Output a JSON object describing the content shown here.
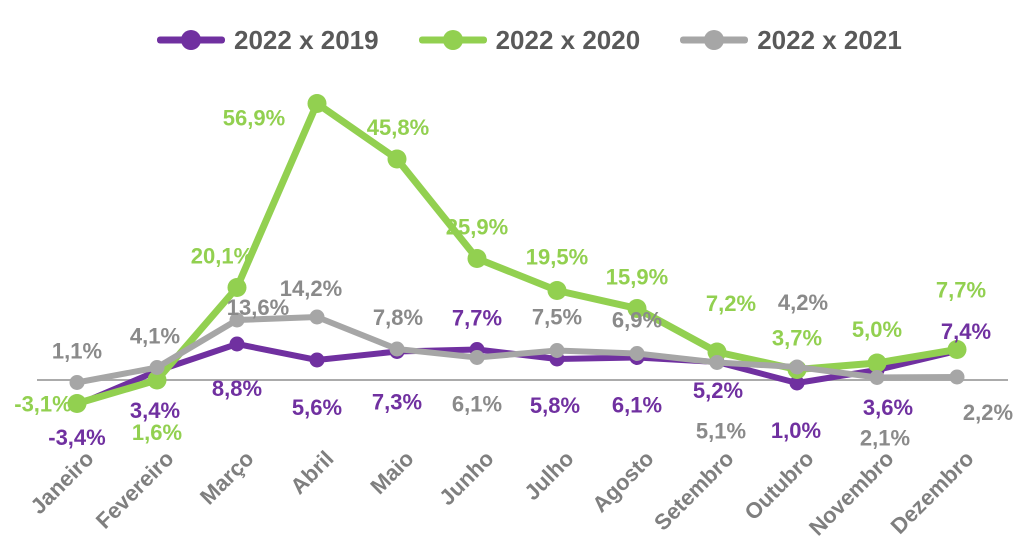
{
  "chart_data": {
    "type": "line",
    "categories": [
      "Janeiro",
      "Fevereiro",
      "Março",
      "Abril",
      "Maio",
      "Junho",
      "Julho",
      "Agosto",
      "Setembro",
      "Outubro",
      "Novembro",
      "Dezembro"
    ],
    "series": [
      {
        "name": "2022 x 2019",
        "color": "#7030A0",
        "label_color": "#7030A0",
        "values": [
          -3.4,
          3.4,
          8.8,
          5.6,
          7.3,
          7.7,
          5.8,
          6.1,
          5.2,
          1.0,
          3.6,
          7.4
        ],
        "labels": [
          "-3,4%",
          "3,4%",
          "8,8%",
          "5,6%",
          "7,3%",
          "7,7%",
          "5,8%",
          "6,1%",
          "5,2%",
          "1,0%",
          "3,6%",
          "7,4%"
        ],
        "label_offsets": [
          [
            0,
            32
          ],
          [
            -2,
            39
          ],
          [
            0,
            44
          ],
          [
            0,
            47
          ],
          [
            0,
            50
          ],
          [
            0,
            -32
          ],
          [
            -2,
            46
          ],
          [
            0,
            47
          ],
          [
            1,
            28
          ],
          [
            -1,
            47
          ],
          [
            11,
            37
          ],
          [
            9,
            -20
          ]
        ]
      },
      {
        "name": "2022 x 2020",
        "color": "#92D050",
        "label_color": "#92D050",
        "values": [
          -3.1,
          1.6,
          20.1,
          56.9,
          45.8,
          25.9,
          19.5,
          15.9,
          7.2,
          3.7,
          5.0,
          7.7
        ],
        "labels": [
          "-3,1%",
          "1,6%",
          "20,1%",
          "56,9%",
          "45,8%",
          "25,9%",
          "19,5%",
          "15,9%",
          "7,2%",
          "3,7%",
          "5,0%",
          "7,7%"
        ],
        "label_offsets": [
          [
            -34,
            0
          ],
          [
            0,
            52
          ],
          [
            -15,
            -32
          ],
          [
            -63,
            14
          ],
          [
            1,
            -32
          ],
          [
            0,
            -32
          ],
          [
            0,
            -34
          ],
          [
            0,
            -32
          ],
          [
            14,
            -49
          ],
          [
            0,
            -32
          ],
          [
            0,
            -34
          ],
          [
            4,
            -60
          ]
        ]
      },
      {
        "name": "2022 x 2021",
        "color": "#A6A6A6",
        "label_color": "#8A8A8A",
        "values": [
          1.1,
          4.1,
          13.6,
          14.2,
          7.8,
          6.1,
          7.5,
          6.9,
          5.1,
          4.2,
          2.1,
          2.2
        ],
        "labels": [
          "1,1%",
          "4,1%",
          "13,6%",
          "14,2%",
          "7,8%",
          "6,1%",
          "7,5%",
          "6,9%",
          "5,1%",
          "4,2%",
          "2,1%",
          "2,2%"
        ],
        "label_offsets": [
          [
            0,
            -32
          ],
          [
            -2,
            -32
          ],
          [
            21,
            -13
          ],
          [
            -6,
            -29
          ],
          [
            1,
            -32
          ],
          [
            0,
            46
          ],
          [
            0,
            -34
          ],
          [
            0,
            -34
          ],
          [
            4,
            68
          ],
          [
            6,
            -65
          ],
          [
            8,
            60
          ],
          [
            31,
            35
          ]
        ]
      }
    ],
    "legend_position": "top",
    "axis": {
      "zero_line": true,
      "gridlines": false,
      "ylim": [
        -10,
        60
      ],
      "category_label_rotation": -45
    },
    "category_label_color": "#7F7F7F",
    "legend_text_color": "#595959",
    "axis_line_color": "#ABABAB",
    "background": "#FFFFFF",
    "number_format": "decimal-comma-percent"
  }
}
